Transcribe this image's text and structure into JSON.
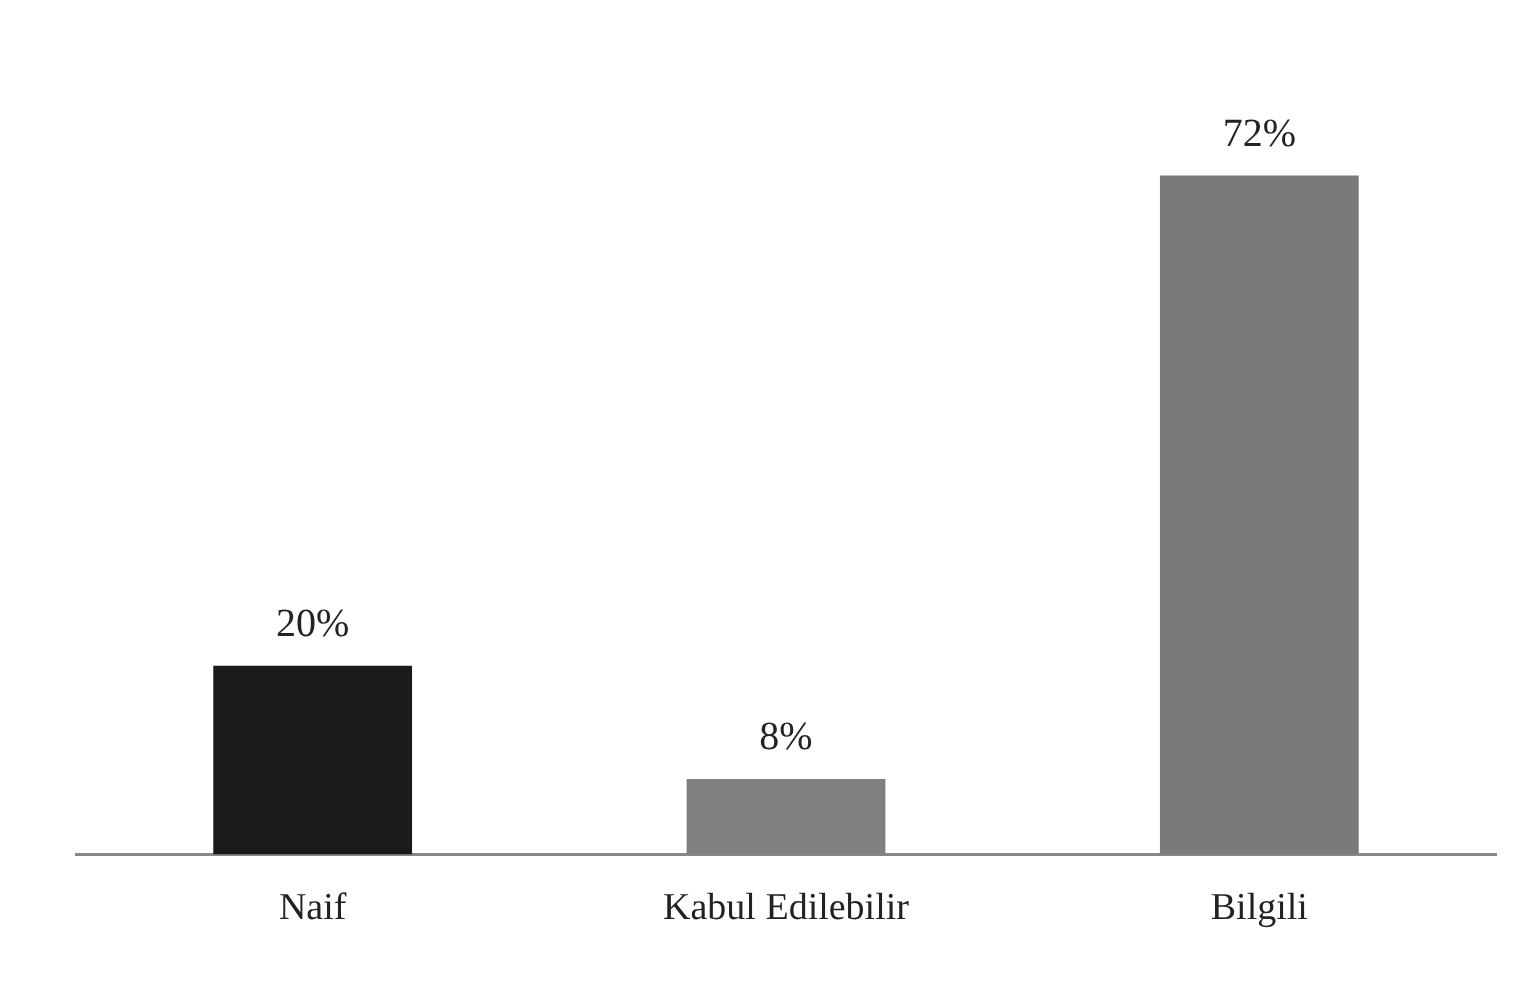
{
  "chart_data": {
    "type": "bar",
    "categories": [
      "Naif",
      "Kabul Edilebilir",
      "Bilgili"
    ],
    "values": [
      20,
      8,
      72
    ],
    "colors": [
      "#1a1a1a",
      "#808080",
      "#7a7a7a"
    ],
    "data_labels": true,
    "value_labels": [
      "20%",
      "8%",
      "72%"
    ],
    "grid": false,
    "legend": false
  }
}
